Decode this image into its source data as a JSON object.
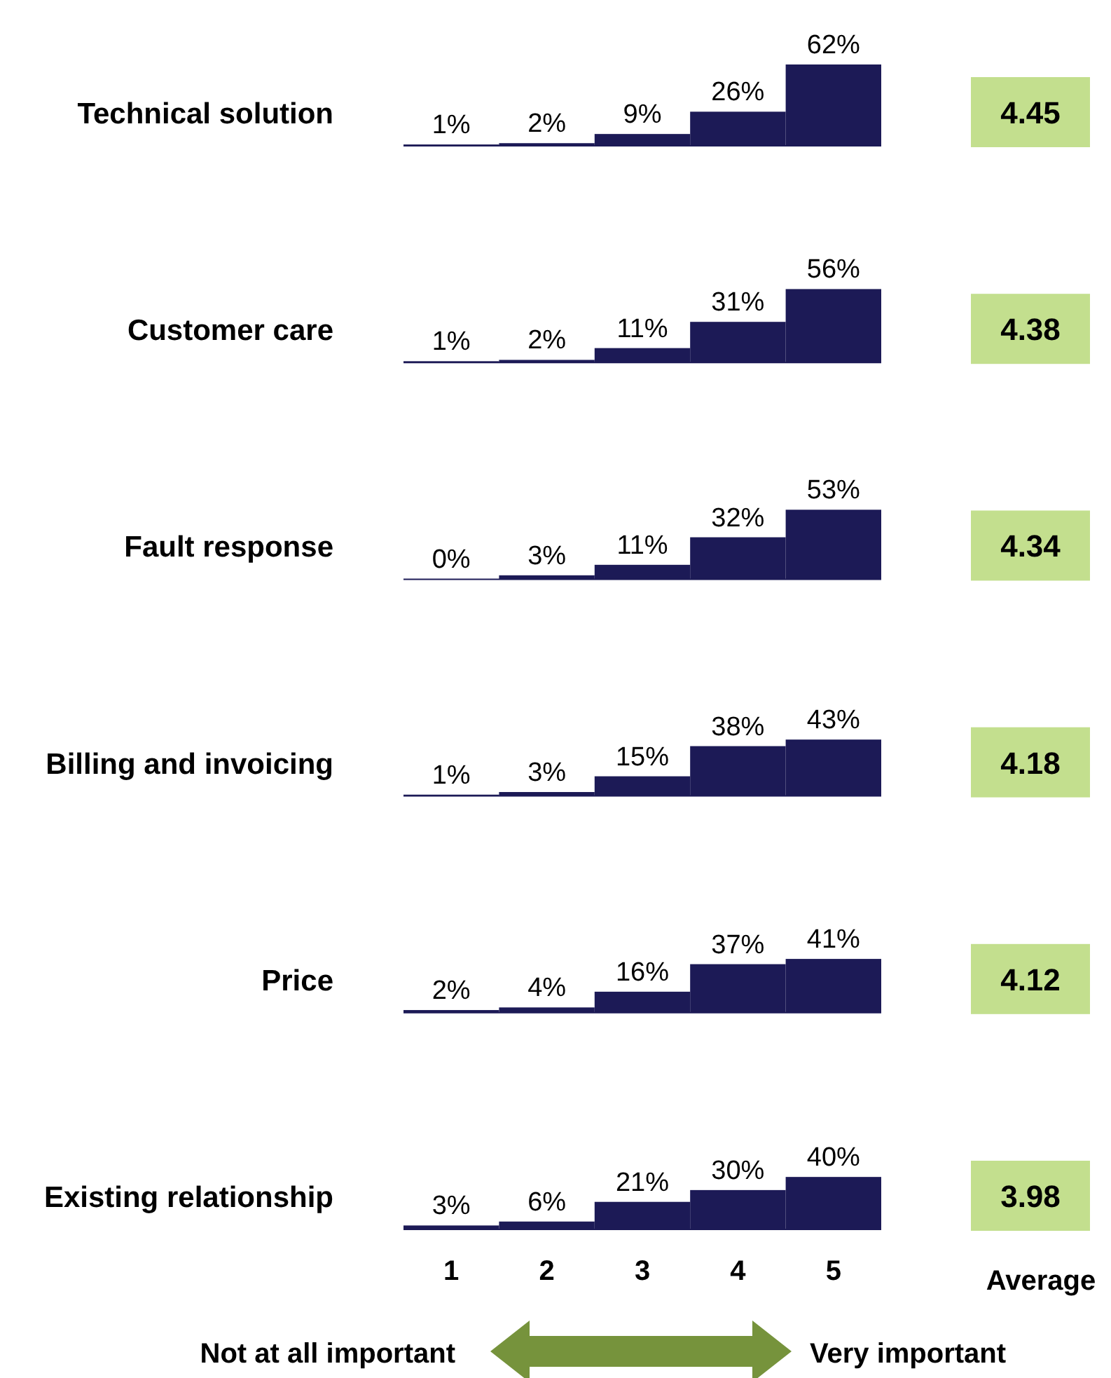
{
  "chart_data": [
    {
      "type": "bar",
      "title": "Technical solution",
      "categories": [
        "1",
        "2",
        "3",
        "4",
        "5"
      ],
      "values": [
        1,
        2,
        9,
        26,
        62
      ],
      "value_labels": [
        "1%",
        "2%",
        "9%",
        "26%",
        "62%"
      ],
      "color": "#1c1a56",
      "tick_labels": false,
      "annotations": [
        "4.45"
      ]
    },
    {
      "type": "bar",
      "title": "Customer care",
      "categories": [
        "1",
        "2",
        "3",
        "4",
        "5"
      ],
      "values": [
        1,
        2,
        11,
        31,
        56
      ],
      "value_labels": [
        "1%",
        "2%",
        "11%",
        "31%",
        "56%"
      ],
      "color": "#1c1a56",
      "tick_labels": false,
      "annotations": [
        "4.38"
      ]
    },
    {
      "type": "bar",
      "title": "Fault response",
      "categories": [
        "1",
        "2",
        "3",
        "4",
        "5"
      ],
      "values": [
        0,
        3,
        11,
        32,
        53
      ],
      "value_labels": [
        "0%",
        "3%",
        "11%",
        "32%",
        "53%"
      ],
      "color": "#1c1a56",
      "tick_labels": false,
      "annotations": [
        "4.34"
      ]
    },
    {
      "type": "bar",
      "title": "Billing and invoicing",
      "categories": [
        "1",
        "2",
        "3",
        "4",
        "5"
      ],
      "values": [
        1,
        3,
        15,
        38,
        43
      ],
      "value_labels": [
        "1%",
        "3%",
        "15%",
        "38%",
        "43%"
      ],
      "color": "#1c1a56",
      "tick_labels": false,
      "annotations": [
        "4.18"
      ]
    },
    {
      "type": "bar",
      "title": "Price",
      "categories": [
        "1",
        "2",
        "3",
        "4",
        "5"
      ],
      "values": [
        2,
        4,
        16,
        37,
        41
      ],
      "value_labels": [
        "2%",
        "4%",
        "16%",
        "37%",
        "41%"
      ],
      "color": "#1c1a56",
      "tick_labels": false,
      "annotations": [
        "4.12"
      ]
    },
    {
      "type": "bar",
      "title": "Existing relationship",
      "categories": [
        "1",
        "2",
        "3",
        "4",
        "5"
      ],
      "values": [
        3,
        6,
        21,
        30,
        40
      ],
      "value_labels": [
        "3%",
        "6%",
        "21%",
        "30%",
        "40%"
      ],
      "color": "#1c1a56",
      "tick_labels": "x",
      "annotations": [
        "3.98",
        "Average",
        "Not at all important",
        "Very important"
      ]
    }
  ]
}
